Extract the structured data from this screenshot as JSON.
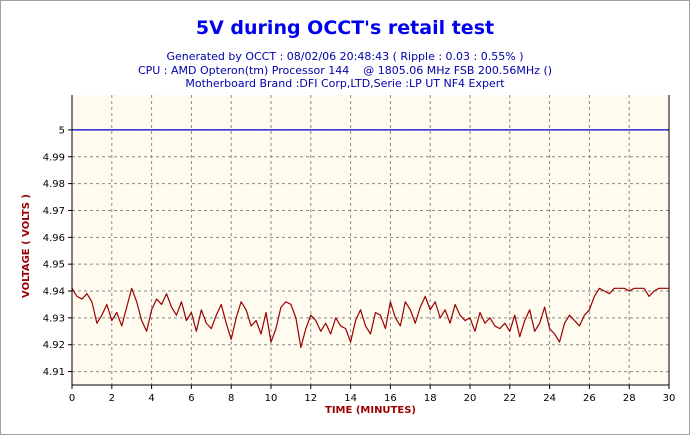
{
  "title": "5V during OCCT's retail test",
  "subtitle_lines": [
    "Generated by OCCT : 08/02/06 20:48:43 ( Ripple : 0.03 : 0.55% )",
    "CPU : AMD Opteron(tm) Processor 144    @ 1805.06 MHz FSB 200.56MHz ()",
    "Motherboard Brand :DFI Corp,LTD,Serie :LP UT NF4 Expert"
  ],
  "chart_data": {
    "type": "line",
    "xlabel": "TIME (MINUTES)",
    "ylabel": "VOLTAGE ( VOLTS )",
    "xlim": [
      0,
      30
    ],
    "ylim": [
      4.905,
      5.013
    ],
    "x_ticks": [
      "0",
      "2",
      "4",
      "6",
      "8",
      "10",
      "12",
      "14",
      "16",
      "18",
      "20",
      "22",
      "24",
      "26",
      "28",
      "30"
    ],
    "y_ticks": [
      "4.91",
      "4.92",
      "4.93",
      "4.94",
      "4.95",
      "4.96",
      "4.97",
      "4.98",
      "4.99",
      "5"
    ],
    "grid": true,
    "plot_background": "#fffbee",
    "reference_line": {
      "y": 5.0,
      "color": "#0000cc"
    },
    "series": [
      {
        "color": "#990000",
        "x": [
          0,
          0.25,
          0.5,
          0.75,
          1,
          1.25,
          1.5,
          1.75,
          2,
          2.25,
          2.5,
          2.75,
          3,
          3.25,
          3.5,
          3.75,
          4,
          4.25,
          4.5,
          4.75,
          5,
          5.25,
          5.5,
          5.75,
          6,
          6.25,
          6.5,
          6.75,
          7,
          7.25,
          7.5,
          7.75,
          8,
          8.25,
          8.5,
          8.75,
          9,
          9.25,
          9.5,
          9.75,
          10,
          10.25,
          10.5,
          10.75,
          11,
          11.25,
          11.5,
          11.75,
          12,
          12.25,
          12.5,
          12.75,
          13,
          13.25,
          13.5,
          13.75,
          14,
          14.25,
          14.5,
          14.75,
          15,
          15.25,
          15.5,
          15.75,
          16,
          16.25,
          16.5,
          16.75,
          17,
          17.25,
          17.5,
          17.75,
          18,
          18.25,
          18.5,
          18.75,
          19,
          19.25,
          19.5,
          19.75,
          20,
          20.25,
          20.5,
          20.75,
          21,
          21.25,
          21.5,
          21.75,
          22,
          22.25,
          22.5,
          22.75,
          23,
          23.25,
          23.5,
          23.75,
          24,
          24.25,
          24.5,
          24.75,
          25,
          25.25,
          25.5,
          25.75,
          26,
          26.25,
          26.5,
          26.75,
          27,
          27.25,
          27.5,
          27.75,
          28,
          28.25,
          28.5,
          28.75,
          29,
          29.25,
          29.5,
          29.75,
          30
        ],
        "values": [
          4.941,
          4.938,
          4.937,
          4.939,
          4.936,
          4.928,
          4.931,
          4.935,
          4.929,
          4.932,
          4.927,
          4.934,
          4.941,
          4.936,
          4.929,
          4.925,
          4.933,
          4.937,
          4.935,
          4.939,
          4.934,
          4.931,
          4.936,
          4.929,
          4.932,
          4.925,
          4.933,
          4.928,
          4.926,
          4.931,
          4.935,
          4.928,
          4.922,
          4.93,
          4.936,
          4.933,
          4.927,
          4.929,
          4.924,
          4.932,
          4.921,
          4.926,
          4.934,
          4.936,
          4.935,
          4.93,
          4.919,
          4.926,
          4.931,
          4.929,
          4.925,
          4.928,
          4.924,
          4.93,
          4.927,
          4.926,
          4.921,
          4.929,
          4.933,
          4.927,
          4.924,
          4.932,
          4.931,
          4.926,
          4.936,
          4.93,
          4.927,
          4.936,
          4.933,
          4.928,
          4.934,
          4.938,
          4.933,
          4.936,
          4.93,
          4.933,
          4.928,
          4.935,
          4.931,
          4.929,
          4.93,
          4.925,
          4.932,
          4.928,
          4.93,
          4.927,
          4.926,
          4.928,
          4.925,
          4.931,
          4.923,
          4.929,
          4.933,
          4.925,
          4.928,
          4.934,
          4.926,
          4.924,
          4.921,
          4.928,
          4.931,
          4.929,
          4.927,
          4.931,
          4.933,
          4.938,
          4.941,
          4.94,
          4.939,
          4.941,
          4.941,
          4.941,
          4.94,
          4.941,
          4.941,
          4.941,
          4.938,
          4.94,
          4.941,
          4.941,
          4.941
        ]
      }
    ]
  }
}
